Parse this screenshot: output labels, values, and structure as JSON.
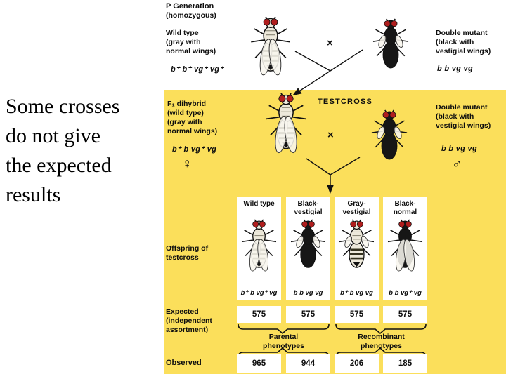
{
  "caption": {
    "lines": [
      "Some crosses",
      "do not give",
      "the expected",
      "results"
    ]
  },
  "colors": {
    "panel": "#FBDF5B",
    "fly_gray": "#EDE9DB",
    "fly_black": "#161616",
    "eye_red": "#B01E1E",
    "line": "#111111"
  },
  "p_generation": {
    "heading": "P Generation",
    "subheading": "(homozygous)",
    "left_label": {
      "l1": "Wild type",
      "l2": "(gray with",
      "l3": "normal wings)"
    },
    "left_genotype": "b⁺ b⁺ vg⁺ vg⁺",
    "left_fly": "gray-normal",
    "cross": "×",
    "right_label": {
      "l1": "Double mutant",
      "l2": "(black with",
      "l3": "vestigial wings)"
    },
    "right_genotype": "b b vg vg",
    "right_fly": "black-vestigial"
  },
  "testcross": {
    "heading": "TESTCROSS",
    "left_label": {
      "l1": "F₁ dihybrid",
      "l2": "(wild type)",
      "l3": "(gray with",
      "l4": "normal wings)"
    },
    "left_genotype": "b⁺ b vg⁺ vg",
    "left_sex": "♀",
    "left_fly": "gray-normal",
    "cross": "×",
    "right_label": {
      "l1": "Double mutant",
      "l2": "(black with",
      "l3": "vestigial wings)"
    },
    "right_genotype": "b b vg vg",
    "right_sex": "♂",
    "right_fly": "black-vestigial"
  },
  "offspring": {
    "row_label": {
      "l1": "Offspring of",
      "l2": "testcross"
    },
    "columns": [
      {
        "title1": "Wild type",
        "title2": "",
        "fly": "gray-normal",
        "genotype": "b⁺ b vg⁺ vg"
      },
      {
        "title1": "Black-",
        "title2": "vestigial",
        "fly": "black-vestigial",
        "genotype": "b b vg vg"
      },
      {
        "title1": "Gray-",
        "title2": "vestigial",
        "fly": "gray-vestigial",
        "genotype": "b⁺ b vg vg"
      },
      {
        "title1": "Black-",
        "title2": "normal",
        "fly": "black-normal",
        "genotype": "b b vg⁺ vg"
      }
    ]
  },
  "expected": {
    "label1": "Expected",
    "label2": "(independent",
    "label3": "assortment)",
    "values": [
      "575",
      "575",
      "575",
      "575"
    ]
  },
  "groups": {
    "parental": {
      "l1": "Parental",
      "l2": "phenotypes"
    },
    "recombinant": {
      "l1": "Recombinant",
      "l2": "phenotypes"
    }
  },
  "observed": {
    "label": "Observed",
    "values": [
      "965",
      "944",
      "206",
      "185"
    ]
  }
}
